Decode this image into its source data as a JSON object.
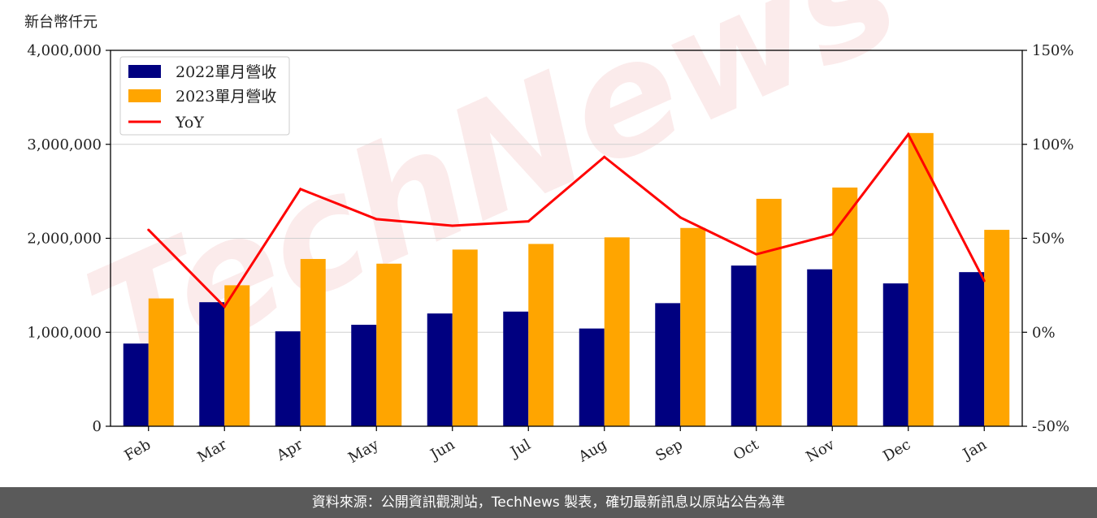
{
  "watermark_text": "TechNews",
  "footer_text": "資料來源：公開資訊觀測站，TechNews 製表，確切最新訊息以原站公告為準",
  "chart_data": {
    "type": "bar",
    "unit_label": "新台幣仟元",
    "categories": [
      "Feb",
      "Mar",
      "Apr",
      "May",
      "Jun",
      "Jul",
      "Aug",
      "Sep",
      "Oct",
      "Nov",
      "Dec",
      "Jan"
    ],
    "series": [
      {
        "name": "2022單月營收",
        "type": "bar",
        "color": "#000080",
        "values": [
          880000,
          1320000,
          1010000,
          1080000,
          1200000,
          1220000,
          1040000,
          1310000,
          1710000,
          1670000,
          1520000,
          1640000
        ]
      },
      {
        "name": "2023單月營收",
        "type": "bar",
        "color": "#ffa500",
        "values": [
          1360000,
          1500000,
          1780000,
          1730000,
          1880000,
          1940000,
          2010000,
          2110000,
          2420000,
          2540000,
          3120000,
          2090000
        ]
      },
      {
        "name": "YoY",
        "type": "line",
        "axis": "right",
        "color": "#ff0000",
        "values": [
          54.5,
          13.6,
          76.2,
          60.2,
          56.7,
          59.0,
          93.3,
          61.1,
          41.5,
          52.1,
          105.3,
          27.4
        ]
      }
    ],
    "left_axis": {
      "ylim": [
        0,
        4000000
      ],
      "ticks": [
        "0",
        "1,000,000",
        "2,000,000",
        "3,000,000",
        "4,000,000"
      ],
      "tick_values": [
        0,
        1000000,
        2000000,
        3000000,
        4000000
      ]
    },
    "right_axis": {
      "ylim": [
        -50,
        150
      ],
      "ticks": [
        "-50%",
        "0%",
        "50%",
        "100%",
        "150%"
      ],
      "tick_values": [
        -50,
        0,
        50,
        100,
        150
      ]
    },
    "grid": true,
    "legend_position": "top-left"
  }
}
